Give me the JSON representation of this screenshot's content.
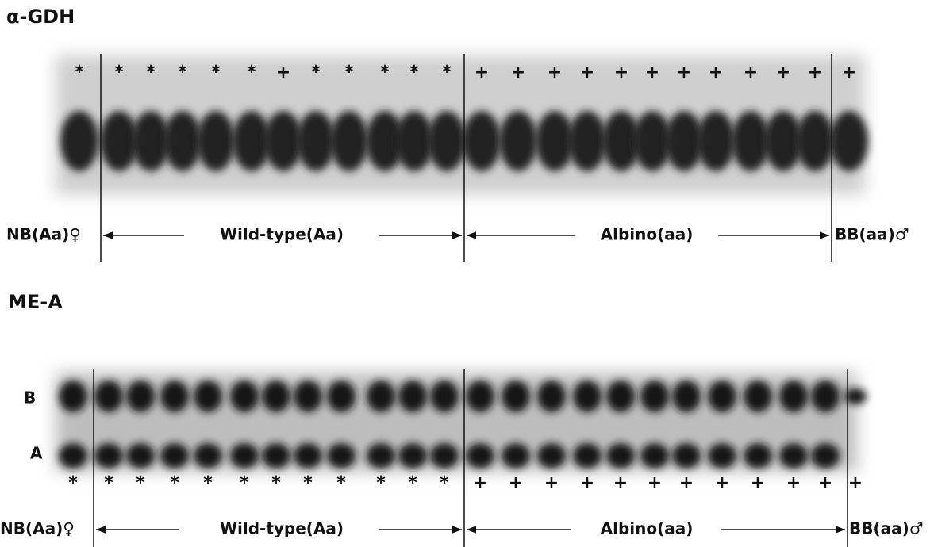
{
  "panels": [
    {
      "title": "α-GDH",
      "lane_markers": [
        "*",
        "*",
        "*",
        "*",
        "*",
        "*",
        "+",
        "*",
        "*",
        "*",
        "*",
        "*",
        "+",
        "+",
        "+",
        "+",
        "+",
        "+",
        "+",
        "+",
        "+",
        "+",
        "+",
        "+"
      ],
      "labels": {
        "nb": "NB(Aa)♀",
        "wild_type": "Wild-type(Aa)",
        "albino": "Albino(aa)",
        "bb": "BB(aa)♂"
      }
    },
    {
      "title": "ME-A",
      "band_labels": [
        "B",
        "A"
      ],
      "lane_markers": [
        "*",
        "*",
        "*",
        "*",
        "*",
        "*",
        "*",
        "*",
        "*",
        "*",
        "*",
        "*",
        "+",
        "+",
        "+",
        "+",
        "+",
        "+",
        "+",
        "+",
        "+",
        "+",
        "+",
        "+"
      ],
      "labels": {
        "nb": "NB(Aa)♀",
        "wild_type": "Wild-type(Aa)",
        "albino": "Albino(aa)",
        "bb": "BB(aa)♂"
      }
    }
  ]
}
